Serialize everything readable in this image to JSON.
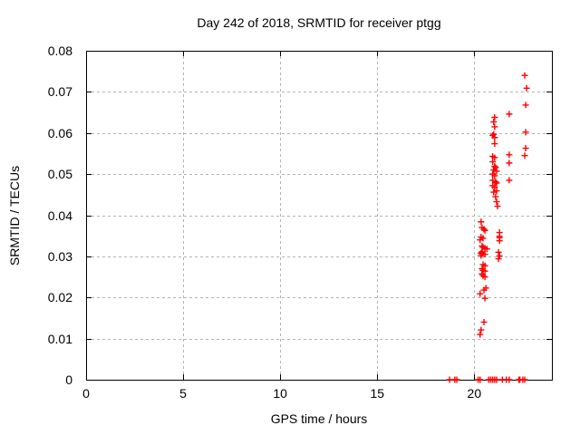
{
  "chart_data": {
    "type": "scatter",
    "title": "Day 242 of 2018, SRMTID for receiver ptgg",
    "xlabel": "GPS time / hours",
    "ylabel": "SRMTID / TECUs",
    "xlim": [
      0,
      24
    ],
    "ylim": [
      0,
      0.08
    ],
    "x_tick_values": [
      0,
      5,
      10,
      15,
      20
    ],
    "x_tick_labels": [
      "0",
      "5",
      "10",
      "15",
      "20"
    ],
    "y_tick_values": [
      0,
      0.01,
      0.02,
      0.03,
      0.04,
      0.05,
      0.06,
      0.07,
      0.08
    ],
    "y_tick_labels": [
      "0",
      "0.01",
      "0.02",
      "0.03",
      "0.04",
      "0.05",
      "0.06",
      "0.07",
      "0.08"
    ],
    "grid": true,
    "legend": "none",
    "marker": "plus",
    "colors": {
      "marker": "#ff0000",
      "grid": "#b3b3b3",
      "axis": "#000000",
      "background": "#ffffff"
    },
    "points": [
      [
        20.35,
        0.0384
      ],
      [
        20.4,
        0.037
      ],
      [
        20.5,
        0.0366
      ],
      [
        20.55,
        0.0363
      ],
      [
        20.35,
        0.0347
      ],
      [
        20.45,
        0.0344
      ],
      [
        20.3,
        0.034
      ],
      [
        20.4,
        0.0325
      ],
      [
        20.45,
        0.0322
      ],
      [
        20.55,
        0.032
      ],
      [
        20.65,
        0.0318
      ],
      [
        20.4,
        0.0311
      ],
      [
        20.35,
        0.0308
      ],
      [
        20.4,
        0.0306
      ],
      [
        20.55,
        0.0305
      ],
      [
        20.35,
        0.0302
      ],
      [
        20.45,
        0.028
      ],
      [
        20.55,
        0.0277
      ],
      [
        20.4,
        0.027
      ],
      [
        20.45,
        0.0266
      ],
      [
        20.55,
        0.0264
      ],
      [
        20.4,
        0.0257
      ],
      [
        20.45,
        0.0253
      ],
      [
        20.55,
        0.025
      ],
      [
        20.6,
        0.0223
      ],
      [
        20.5,
        0.0218
      ],
      [
        20.3,
        0.0209
      ],
      [
        20.55,
        0.0198
      ],
      [
        20.5,
        0.014
      ],
      [
        20.35,
        0.0121
      ],
      [
        20.3,
        0.011
      ],
      [
        21.05,
        0.0638
      ],
      [
        21.0,
        0.0627
      ],
      [
        21.05,
        0.0615
      ],
      [
        21.0,
        0.0597
      ],
      [
        20.95,
        0.0594
      ],
      [
        21.05,
        0.0589
      ],
      [
        21.05,
        0.0574
      ],
      [
        20.95,
        0.0543
      ],
      [
        21.05,
        0.054
      ],
      [
        20.95,
        0.053
      ],
      [
        21.05,
        0.0519
      ],
      [
        21.1,
        0.0516
      ],
      [
        21.0,
        0.051
      ],
      [
        21.15,
        0.0507
      ],
      [
        20.95,
        0.05
      ],
      [
        21.05,
        0.0496
      ],
      [
        20.95,
        0.0485
      ],
      [
        21.1,
        0.0481
      ],
      [
        21.15,
        0.0478
      ],
      [
        20.95,
        0.0472
      ],
      [
        21.05,
        0.0468
      ],
      [
        21.15,
        0.0459
      ],
      [
        21.0,
        0.0456
      ],
      [
        21.1,
        0.0445
      ],
      [
        21.15,
        0.0433
      ],
      [
        21.2,
        0.0422
      ],
      [
        21.3,
        0.0358
      ],
      [
        21.3,
        0.0349
      ],
      [
        21.3,
        0.0345
      ],
      [
        21.3,
        0.0338
      ],
      [
        21.25,
        0.031
      ],
      [
        21.3,
        0.0301
      ],
      [
        21.25,
        0.0294
      ],
      [
        21.8,
        0.0646
      ],
      [
        21.8,
        0.0547
      ],
      [
        21.8,
        0.0527
      ],
      [
        21.8,
        0.0485
      ],
      [
        22.6,
        0.074
      ],
      [
        22.7,
        0.0709
      ],
      [
        22.65,
        0.0668
      ],
      [
        22.65,
        0.0602
      ],
      [
        22.65,
        0.0563
      ],
      [
        22.6,
        0.0545
      ],
      [
        18.73,
        0
      ],
      [
        19.0,
        0
      ],
      [
        19.1,
        0
      ],
      [
        20.2,
        0
      ],
      [
        20.3,
        0
      ],
      [
        20.75,
        0
      ],
      [
        20.85,
        0
      ],
      [
        20.95,
        0
      ],
      [
        21.05,
        0
      ],
      [
        21.15,
        0
      ],
      [
        21.45,
        0
      ],
      [
        21.65,
        0
      ],
      [
        21.8,
        0
      ],
      [
        22.3,
        0
      ],
      [
        22.35,
        0
      ],
      [
        22.5,
        0
      ],
      [
        22.6,
        0
      ]
    ]
  }
}
